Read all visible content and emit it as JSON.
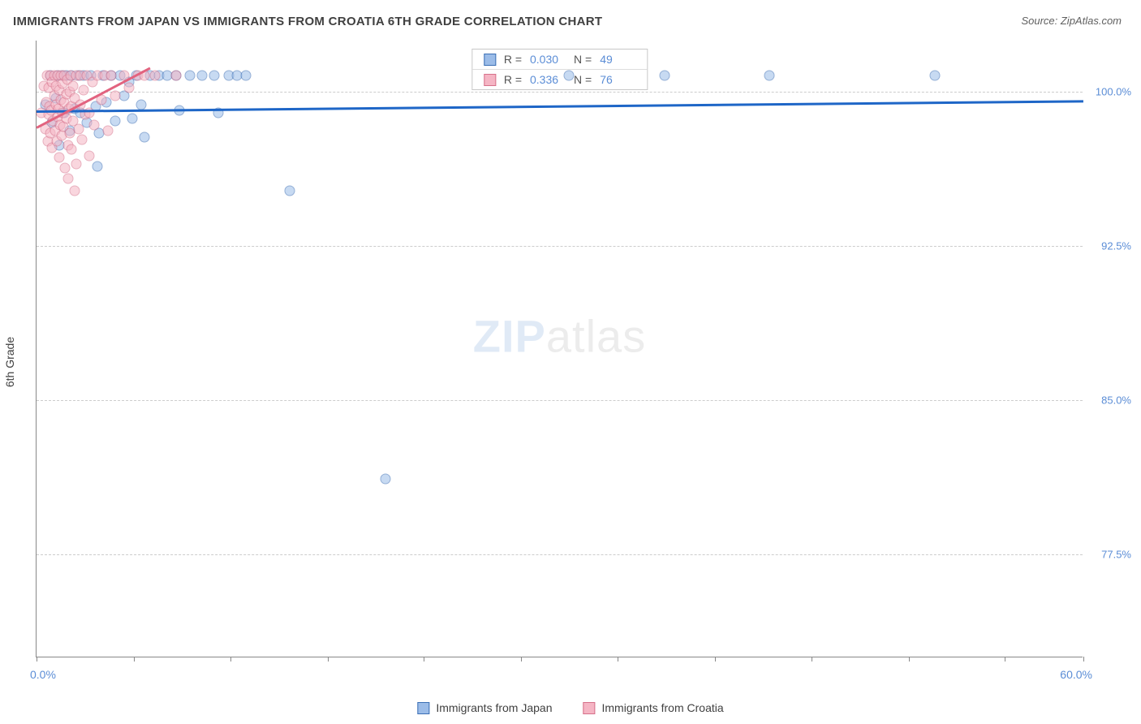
{
  "title": "IMMIGRANTS FROM JAPAN VS IMMIGRANTS FROM CROATIA 6TH GRADE CORRELATION CHART",
  "source": "Source: ZipAtlas.com",
  "ylabel": "6th Grade",
  "watermark_a": "ZIP",
  "watermark_b": "atlas",
  "chart": {
    "type": "scatter",
    "xlim": [
      0,
      60
    ],
    "ylim": [
      72.5,
      102.5
    ],
    "x_min_label": "0.0%",
    "x_max_label": "60.0%",
    "xtick_positions_pct": [
      0,
      9.3,
      18.5,
      27.8,
      37.0,
      46.3,
      55.5,
      64.8,
      74.0,
      83.3,
      92.5,
      100
    ],
    "yticks": [
      {
        "value": 100.0,
        "label": "100.0%"
      },
      {
        "value": 92.5,
        "label": "92.5%"
      },
      {
        "value": 85.0,
        "label": "85.0%"
      },
      {
        "value": 77.5,
        "label": "77.5%"
      }
    ],
    "background_color": "#ffffff",
    "grid_color": "#cccccc",
    "marker_radius": 6.5,
    "marker_opacity": 0.55,
    "trendline_width": 2.5,
    "axis_color": "#888888",
    "series": [
      {
        "name": "Immigrants from Japan",
        "key": "japan",
        "color_fill": "#9bbce8",
        "color_stroke": "#3b6fb5",
        "trend_color": "#1e66c7",
        "R": "0.030",
        "N": "49",
        "trend": {
          "x1": 0,
          "y1": 99.1,
          "x2": 60,
          "y2": 99.6
        },
        "points": [
          [
            0.5,
            99.4
          ],
          [
            0.8,
            100.8
          ],
          [
            0.9,
            98.5
          ],
          [
            1.1,
            99.7
          ],
          [
            1.2,
            100.8
          ],
          [
            1.3,
            97.4
          ],
          [
            1.5,
            100.8
          ],
          [
            1.6,
            99.0
          ],
          [
            1.7,
            100.8
          ],
          [
            1.9,
            98.1
          ],
          [
            2.0,
            100.8
          ],
          [
            2.2,
            99.2
          ],
          [
            2.4,
            100.8
          ],
          [
            2.5,
            99.0
          ],
          [
            2.7,
            100.8
          ],
          [
            2.9,
            98.5
          ],
          [
            3.1,
            100.8
          ],
          [
            3.4,
            99.3
          ],
          [
            3.5,
            96.4
          ],
          [
            3.6,
            98.0
          ],
          [
            3.8,
            100.8
          ],
          [
            4.0,
            99.5
          ],
          [
            4.3,
            100.8
          ],
          [
            4.5,
            98.6
          ],
          [
            4.8,
            100.8
          ],
          [
            5.0,
            99.8
          ],
          [
            5.3,
            100.5
          ],
          [
            5.5,
            98.7
          ],
          [
            5.7,
            100.8
          ],
          [
            6.0,
            99.4
          ],
          [
            6.2,
            97.8
          ],
          [
            6.5,
            100.8
          ],
          [
            7.0,
            100.8
          ],
          [
            7.5,
            100.8
          ],
          [
            8.0,
            100.8
          ],
          [
            8.2,
            99.1
          ],
          [
            8.8,
            100.8
          ],
          [
            9.5,
            100.8
          ],
          [
            10.2,
            100.8
          ],
          [
            10.4,
            99.0
          ],
          [
            11.0,
            100.8
          ],
          [
            11.5,
            100.8
          ],
          [
            12.0,
            100.8
          ],
          [
            14.5,
            95.2
          ],
          [
            20.0,
            81.2
          ],
          [
            30.5,
            100.8
          ],
          [
            36.0,
            100.8
          ],
          [
            42.0,
            100.8
          ],
          [
            51.5,
            100.8
          ]
        ]
      },
      {
        "name": "Immigrants from Croatia",
        "key": "croatia",
        "color_fill": "#f5b5c4",
        "color_stroke": "#d6708a",
        "trend_color": "#e2637f",
        "R": "0.336",
        "N": "76",
        "trend": {
          "x1": 0,
          "y1": 98.3,
          "x2": 6.5,
          "y2": 101.2
        },
        "points": [
          [
            0.3,
            99.0
          ],
          [
            0.4,
            100.3
          ],
          [
            0.5,
            98.2
          ],
          [
            0.55,
            99.5
          ],
          [
            0.6,
            100.8
          ],
          [
            0.65,
            97.6
          ],
          [
            0.7,
            98.9
          ],
          [
            0.7,
            100.2
          ],
          [
            0.75,
            99.3
          ],
          [
            0.8,
            100.8
          ],
          [
            0.8,
            98.0
          ],
          [
            0.85,
            99.1
          ],
          [
            0.9,
            100.5
          ],
          [
            0.9,
            97.3
          ],
          [
            0.95,
            98.6
          ],
          [
            1.0,
            99.8
          ],
          [
            1.0,
            100.8
          ],
          [
            1.05,
            98.1
          ],
          [
            1.1,
            99.4
          ],
          [
            1.1,
            100.3
          ],
          [
            1.15,
            97.6
          ],
          [
            1.2,
            98.8
          ],
          [
            1.2,
            100.8
          ],
          [
            1.25,
            99.2
          ],
          [
            1.3,
            100.1
          ],
          [
            1.3,
            96.8
          ],
          [
            1.35,
            98.4
          ],
          [
            1.4,
            99.6
          ],
          [
            1.4,
            100.8
          ],
          [
            1.45,
            97.9
          ],
          [
            1.5,
            99.0
          ],
          [
            1.5,
            100.4
          ],
          [
            1.55,
            98.3
          ],
          [
            1.6,
            99.5
          ],
          [
            1.6,
            100.8
          ],
          [
            1.65,
            96.3
          ],
          [
            1.7,
            98.7
          ],
          [
            1.7,
            99.9
          ],
          [
            1.75,
            100.6
          ],
          [
            1.8,
            97.4
          ],
          [
            1.8,
            95.8
          ],
          [
            1.85,
            99.2
          ],
          [
            1.9,
            100.0
          ],
          [
            1.9,
            98.0
          ],
          [
            1.95,
            100.8
          ],
          [
            2.0,
            99.3
          ],
          [
            2.0,
            97.2
          ],
          [
            2.1,
            98.6
          ],
          [
            2.1,
            100.3
          ],
          [
            2.2,
            95.2
          ],
          [
            2.2,
            99.7
          ],
          [
            2.3,
            100.8
          ],
          [
            2.3,
            96.5
          ],
          [
            2.4,
            98.2
          ],
          [
            2.5,
            99.4
          ],
          [
            2.5,
            100.8
          ],
          [
            2.6,
            97.7
          ],
          [
            2.7,
            100.1
          ],
          [
            2.8,
            98.9
          ],
          [
            2.9,
            100.8
          ],
          [
            3.0,
            99.0
          ],
          [
            3.0,
            96.9
          ],
          [
            3.2,
            100.5
          ],
          [
            3.3,
            98.4
          ],
          [
            3.5,
            100.8
          ],
          [
            3.7,
            99.6
          ],
          [
            3.9,
            100.8
          ],
          [
            4.1,
            98.1
          ],
          [
            4.3,
            100.8
          ],
          [
            4.5,
            99.8
          ],
          [
            5.0,
            100.8
          ],
          [
            5.3,
            100.2
          ],
          [
            5.8,
            100.8
          ],
          [
            6.2,
            100.8
          ],
          [
            6.8,
            100.8
          ],
          [
            8.0,
            100.8
          ]
        ]
      }
    ]
  },
  "legend_bottom": [
    {
      "label": "Immigrants from Japan",
      "swatch": "blue"
    },
    {
      "label": "Immigrants from Croatia",
      "swatch": "pink"
    }
  ],
  "stats_labels": {
    "R": "R =",
    "N": "N ="
  }
}
